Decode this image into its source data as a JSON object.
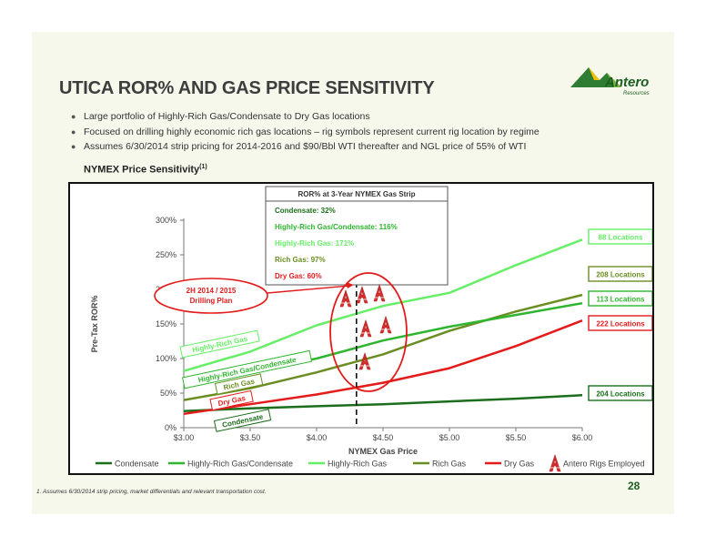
{
  "slide": {
    "title": "UTICA ROR% AND GAS PRICE SENSITIVITY",
    "logo_text": "Antero",
    "logo_subtext": "Resources",
    "bullets": [
      "Large portfolio of Highly-Rich Gas/Condensate to Dry Gas locations",
      "Focused on drilling highly economic rich gas locations – rig symbols represent current rig location by regime",
      "Assumes 6/30/2014 strip pricing for 2014-2016 and $90/Bbl WTI thereafter and NGL price of 55% of WTI"
    ],
    "subhead": "NYMEX Price Sensitivity",
    "subhead_sup": "(1)",
    "footnote": "1.  Assumes 6/30/2014 strip pricing, market differentials and relevant transportation cost.",
    "page_number": "28"
  },
  "chart_data": {
    "type": "line",
    "xlabel": "NYMEX Gas Price",
    "ylabel": "Pre-Tax ROR%",
    "x": [
      3.0,
      3.5,
      4.0,
      4.5,
      5.0,
      5.5,
      6.0
    ],
    "x_tick_labels": [
      "$3.00",
      "$3.50",
      "$4.00",
      "$4.50",
      "$5.00",
      "$5.50",
      "$6.00"
    ],
    "y_tick_values": [
      0,
      50,
      100,
      150,
      200,
      250,
      300
    ],
    "y_tick_labels": [
      "0%",
      "50%",
      "100%",
      "150%",
      "200%",
      "250%",
      "300%"
    ],
    "xlim": [
      3.0,
      6.0
    ],
    "ylim": [
      0,
      300
    ],
    "reference_x": 4.3,
    "series": [
      {
        "name": "Condensate",
        "color": "#1b6e1b",
        "values": [
          24,
          28,
          31,
          34,
          38,
          42,
          47
        ],
        "tag": "Condensate",
        "locations": "204 Locations"
      },
      {
        "name": "Highly-Rich Gas/Condensate",
        "color": "#2fb52f",
        "values": [
          63,
          82,
          100,
          126,
          146,
          163,
          180
        ],
        "tag": "Highly-Rich Gas/Condensate",
        "locations": "113 Locations"
      },
      {
        "name": "Highly-Rich Gas",
        "color": "#66ee66",
        "values": [
          82,
          110,
          148,
          176,
          195,
          235,
          272
        ],
        "tag": "Highly-Rich Gas",
        "locations": "88 Locations"
      },
      {
        "name": "Rich Gas",
        "color": "#6b8e23",
        "values": [
          40,
          57,
          80,
          106,
          140,
          168,
          192
        ],
        "tag": "Rich Gas",
        "locations": "208 Locations"
      },
      {
        "name": "Dry Gas",
        "color": "#e31b1b",
        "values": [
          20,
          34,
          48,
          65,
          86,
          118,
          155
        ],
        "tag": "Dry Gas",
        "locations": "222 Locations"
      }
    ],
    "legend": {
      "placement": "bottom",
      "extra_item": "Antero Rigs Employed"
    },
    "info_box": {
      "title": "ROR% at 3-Year NYMEX Gas Strip",
      "lines": [
        {
          "text": "Condensate: 32%",
          "color": "#1b6e1b"
        },
        {
          "text": "Highly-Rich Gas/Condensate: 116%",
          "color": "#2fb52f"
        },
        {
          "text": "Highly-Rich Gas: 171%",
          "color": "#66ee66"
        },
        {
          "text": "Rich Gas: 97%",
          "color": "#6b8e23"
        },
        {
          "text": "Dry Gas: 60%",
          "color": "#e31b1b"
        }
      ]
    },
    "callout": {
      "line1": "2H 2014 / 2015",
      "line2": "Drilling Plan",
      "color": "#e31b1b"
    }
  }
}
